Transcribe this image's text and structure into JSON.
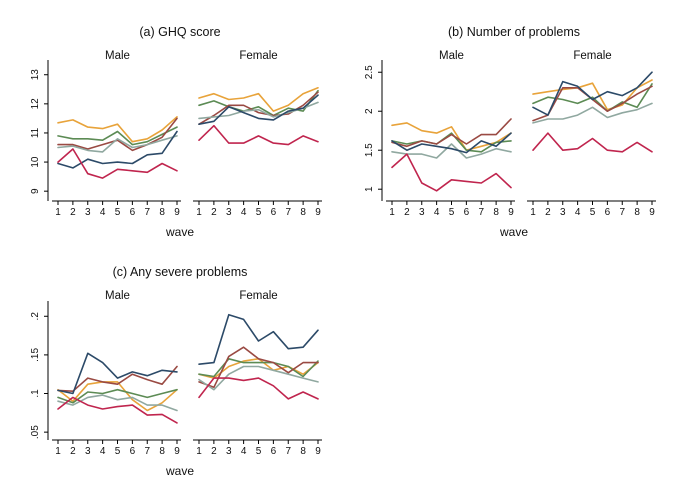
{
  "chart_data": [
    {
      "type": "line",
      "title": "(a) GHQ score",
      "xlabel": "wave",
      "ylabel": "",
      "x": [
        1,
        2,
        3,
        4,
        5,
        6,
        7,
        8,
        9
      ],
      "ylim": [
        8.8,
        13.3
      ],
      "yticks": [
        9,
        10,
        11,
        12,
        13
      ],
      "grid": false,
      "legend": "none",
      "facets": [
        {
          "label": "Male",
          "series": [
            {
              "color": "#e8a33a",
              "values": [
                11.35,
                11.45,
                11.2,
                11.15,
                11.3,
                10.7,
                10.8,
                11.1,
                11.55
              ]
            },
            {
              "color": "#5c8b54",
              "values": [
                10.9,
                10.8,
                10.8,
                10.75,
                11.05,
                10.6,
                10.7,
                10.95,
                11.2
              ]
            },
            {
              "color": "#9a4a43",
              "values": [
                10.6,
                10.6,
                10.45,
                10.6,
                10.75,
                10.4,
                10.6,
                10.85,
                11.5
              ]
            },
            {
              "color": "#90a8a0",
              "values": [
                10.5,
                10.55,
                10.4,
                10.35,
                10.8,
                10.5,
                10.6,
                10.75,
                10.9
              ]
            },
            {
              "color": "#2c4a68",
              "values": [
                9.95,
                9.8,
                10.1,
                9.95,
                10.0,
                9.95,
                10.25,
                10.3,
                11.05
              ]
            },
            {
              "color": "#c0254e",
              "values": [
                10.0,
                10.45,
                9.6,
                9.45,
                9.75,
                9.7,
                9.65,
                9.95,
                9.7
              ]
            }
          ]
        },
        {
          "label": "Female",
          "series": [
            {
              "color": "#e8a33a",
              "values": [
                12.2,
                12.35,
                12.15,
                12.2,
                12.35,
                11.75,
                11.95,
                12.35,
                12.55
              ]
            },
            {
              "color": "#5c8b54",
              "values": [
                11.95,
                12.1,
                11.9,
                11.75,
                11.9,
                11.6,
                11.85,
                11.75,
                12.45
              ]
            },
            {
              "color": "#9a4a43",
              "values": [
                11.3,
                11.6,
                11.95,
                11.95,
                11.7,
                11.6,
                11.65,
                11.95,
                12.4
              ]
            },
            {
              "color": "#90a8a0",
              "values": [
                11.5,
                11.55,
                11.6,
                11.75,
                11.8,
                11.55,
                11.7,
                11.85,
                12.05
              ]
            },
            {
              "color": "#2c4a68",
              "values": [
                11.3,
                11.4,
                11.9,
                11.7,
                11.5,
                11.45,
                11.75,
                11.85,
                12.3
              ]
            },
            {
              "color": "#c0254e",
              "values": [
                10.75,
                11.25,
                10.65,
                10.65,
                10.9,
                10.65,
                10.6,
                10.9,
                10.7
              ]
            }
          ]
        }
      ]
    },
    {
      "type": "line",
      "title": "(b) Number of problems",
      "xlabel": "wave",
      "ylabel": "",
      "x": [
        1,
        2,
        3,
        4,
        5,
        6,
        7,
        8,
        9
      ],
      "ylim": [
        0.9,
        2.58
      ],
      "yticks": [
        1,
        1.5,
        2,
        2.5
      ],
      "grid": false,
      "legend": "none",
      "facets": [
        {
          "label": "Male",
          "series": [
            {
              "color": "#e8a33a",
              "values": [
                1.82,
                1.85,
                1.75,
                1.72,
                1.8,
                1.5,
                1.55,
                1.6,
                1.72
              ]
            },
            {
              "color": "#5c8b54",
              "values": [
                1.62,
                1.58,
                1.62,
                1.58,
                1.72,
                1.5,
                1.48,
                1.6,
                1.62
              ]
            },
            {
              "color": "#9a4a43",
              "values": [
                1.6,
                1.55,
                1.62,
                1.58,
                1.7,
                1.58,
                1.7,
                1.7,
                1.9
              ]
            },
            {
              "color": "#90a8a0",
              "values": [
                1.48,
                1.45,
                1.45,
                1.4,
                1.58,
                1.4,
                1.45,
                1.52,
                1.48
              ]
            },
            {
              "color": "#2c4a68",
              "values": [
                1.62,
                1.5,
                1.58,
                1.55,
                1.52,
                1.47,
                1.62,
                1.55,
                1.72
              ]
            },
            {
              "color": "#c0254e",
              "values": [
                1.28,
                1.45,
                1.08,
                0.98,
                1.12,
                1.1,
                1.08,
                1.2,
                1.02
              ]
            }
          ]
        },
        {
          "label": "Female",
          "series": [
            {
              "color": "#e8a33a",
              "values": [
                2.22,
                2.25,
                2.28,
                2.3,
                2.36,
                2.02,
                2.08,
                2.3,
                2.4
              ]
            },
            {
              "color": "#5c8b54",
              "values": [
                2.1,
                2.18,
                2.15,
                2.1,
                2.18,
                2.0,
                2.12,
                2.05,
                2.35
              ]
            },
            {
              "color": "#9a4a43",
              "values": [
                1.88,
                1.95,
                2.3,
                2.3,
                2.15,
                2.0,
                2.1,
                2.22,
                2.32
              ]
            },
            {
              "color": "#90a8a0",
              "values": [
                1.85,
                1.9,
                1.9,
                1.95,
                2.05,
                1.92,
                1.98,
                2.02,
                2.1
              ]
            },
            {
              "color": "#2c4a68",
              "values": [
                2.05,
                1.95,
                2.38,
                2.32,
                2.15,
                2.25,
                2.2,
                2.3,
                2.5
              ]
            },
            {
              "color": "#c0254e",
              "values": [
                1.5,
                1.72,
                1.5,
                1.52,
                1.65,
                1.5,
                1.48,
                1.6,
                1.48
              ]
            }
          ]
        }
      ]
    },
    {
      "type": "line",
      "title": "(c) Any severe problems",
      "xlabel": "wave",
      "ylabel": "",
      "x": [
        1,
        2,
        3,
        4,
        5,
        6,
        7,
        8,
        9
      ],
      "ylim": [
        0.045,
        0.212
      ],
      "yticks": [
        0.05,
        0.1,
        0.15,
        0.2
      ],
      "yticklabels": [
        ".05",
        ".1",
        ".15",
        ".2"
      ],
      "grid": false,
      "legend": "none",
      "facets": [
        {
          "label": "Male",
          "series": [
            {
              "color": "#e8a33a",
              "values": [
                0.105,
                0.09,
                0.112,
                0.115,
                0.115,
                0.092,
                0.078,
                0.088,
                0.105
              ]
            },
            {
              "color": "#5c8b54",
              "values": [
                0.095,
                0.088,
                0.102,
                0.1,
                0.105,
                0.1,
                0.095,
                0.1,
                0.105
              ]
            },
            {
              "color": "#9a4a43",
              "values": [
                0.104,
                0.103,
                0.12,
                0.115,
                0.112,
                0.125,
                0.118,
                0.112,
                0.135
              ]
            },
            {
              "color": "#90a8a0",
              "values": [
                0.09,
                0.085,
                0.095,
                0.098,
                0.092,
                0.095,
                0.085,
                0.085,
                0.078
              ]
            },
            {
              "color": "#2c4a68",
              "values": [
                0.104,
                0.1,
                0.152,
                0.14,
                0.12,
                0.128,
                0.123,
                0.13,
                0.128
              ]
            },
            {
              "color": "#c0254e",
              "values": [
                0.08,
                0.095,
                0.085,
                0.08,
                0.083,
                0.085,
                0.072,
                0.073,
                0.062
              ]
            }
          ]
        },
        {
          "label": "Female",
          "series": [
            {
              "color": "#e8a33a",
              "values": [
                0.125,
                0.12,
                0.135,
                0.142,
                0.145,
                0.13,
                0.135,
                0.125,
                0.14
              ]
            },
            {
              "color": "#5c8b54",
              "values": [
                0.125,
                0.122,
                0.145,
                0.14,
                0.14,
                0.14,
                0.135,
                0.122,
                0.142
              ]
            },
            {
              "color": "#9a4a43",
              "values": [
                0.115,
                0.108,
                0.148,
                0.16,
                0.145,
                0.14,
                0.127,
                0.14,
                0.14
              ]
            },
            {
              "color": "#90a8a0",
              "values": [
                0.118,
                0.105,
                0.125,
                0.135,
                0.135,
                0.13,
                0.125,
                0.12,
                0.115
              ]
            },
            {
              "color": "#2c4a68",
              "values": [
                0.138,
                0.14,
                0.202,
                0.196,
                0.168,
                0.18,
                0.158,
                0.16,
                0.182
              ]
            },
            {
              "color": "#c0254e",
              "values": [
                0.095,
                0.12,
                0.12,
                0.117,
                0.12,
                0.11,
                0.093,
                0.102,
                0.093
              ]
            }
          ]
        }
      ]
    }
  ]
}
